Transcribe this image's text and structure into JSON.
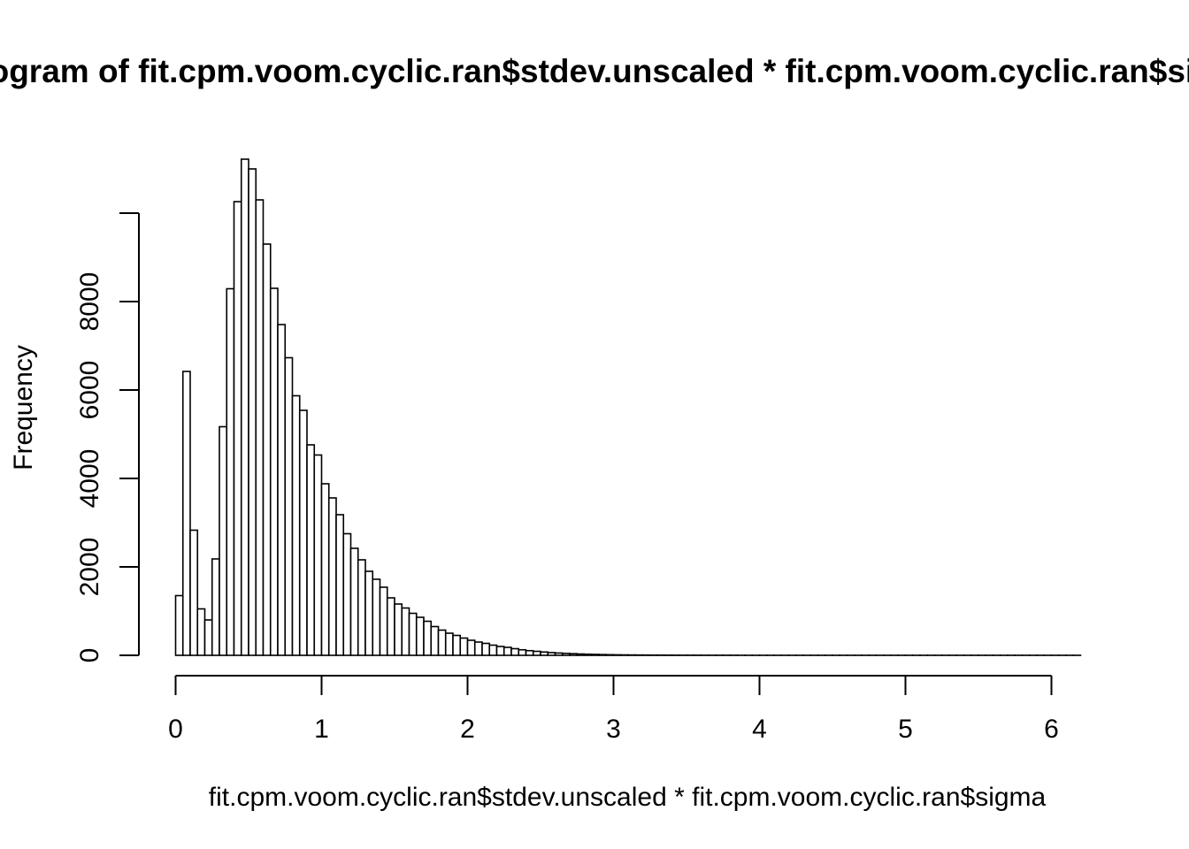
{
  "chart_data": {
    "type": "bar",
    "title": "Histogram of fit.cpm.voom.cyclic.ran$stdev.unscaled * fit.cpm.voom.cyclic.ran$sigma",
    "xlabel": "fit.cpm.voom.cyclic.ran$stdev.unscaled * fit.cpm.voom.cyclic.ran$sigma",
    "ylabel": "Frequency",
    "xlim": [
      0,
      6.2
    ],
    "ylim": [
      0,
      11200
    ],
    "xticks": [
      "0",
      "1",
      "2",
      "3",
      "4",
      "5",
      "6"
    ],
    "yticks": [
      "0",
      "2000",
      "4000",
      "6000",
      "8000"
    ],
    "bin_start": 0,
    "bin_width": 0.05,
    "values": [
      1350,
      6420,
      2830,
      1050,
      800,
      2180,
      5170,
      8290,
      10260,
      11220,
      11000,
      10300,
      9300,
      8300,
      7480,
      6730,
      5870,
      5540,
      4760,
      4530,
      3880,
      3560,
      3180,
      2750,
      2420,
      2160,
      1900,
      1720,
      1540,
      1300,
      1160,
      1070,
      950,
      860,
      770,
      650,
      570,
      500,
      450,
      390,
      340,
      300,
      270,
      230,
      200,
      180,
      150,
      125,
      105,
      90,
      75,
      62,
      52,
      44,
      37,
      30,
      25,
      21,
      17,
      14,
      11,
      9,
      8,
      7,
      6,
      5,
      5,
      4,
      4,
      3,
      3,
      3,
      2,
      2,
      2,
      2,
      2,
      1,
      1,
      1,
      1,
      1,
      1,
      1,
      1,
      1,
      1,
      1,
      1,
      1,
      1,
      1,
      1,
      1,
      1,
      1,
      1,
      1,
      1,
      1,
      1,
      1,
      1,
      1,
      1,
      1,
      1,
      1,
      1,
      1,
      1,
      1,
      1,
      1,
      1,
      1,
      1,
      1,
      1,
      1,
      1,
      1,
      1,
      1
    ],
    "bar_fill": "#ffffff",
    "bar_stroke": "#000000",
    "grid": false,
    "legend": "none"
  }
}
